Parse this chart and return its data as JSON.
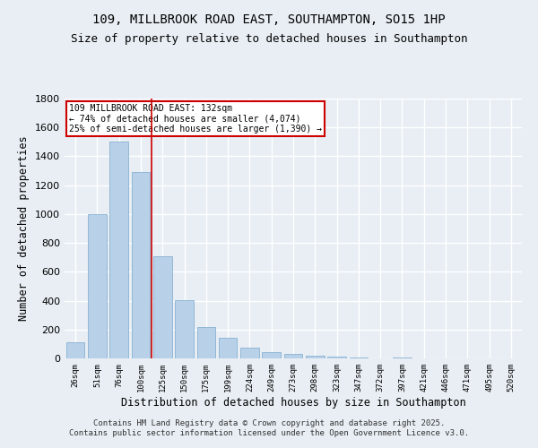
{
  "title": "109, MILLBROOK ROAD EAST, SOUTHAMPTON, SO15 1HP",
  "subtitle": "Size of property relative to detached houses in Southampton",
  "xlabel": "Distribution of detached houses by size in Southampton",
  "ylabel": "Number of detached properties",
  "categories": [
    "26sqm",
    "51sqm",
    "76sqm",
    "100sqm",
    "125sqm",
    "150sqm",
    "175sqm",
    "199sqm",
    "224sqm",
    "249sqm",
    "273sqm",
    "298sqm",
    "323sqm",
    "347sqm",
    "372sqm",
    "397sqm",
    "421sqm",
    "446sqm",
    "471sqm",
    "495sqm",
    "520sqm"
  ],
  "values": [
    110,
    1000,
    1500,
    1290,
    710,
    405,
    215,
    140,
    75,
    45,
    30,
    20,
    10,
    5,
    0,
    5,
    0,
    0,
    0,
    0,
    0
  ],
  "bar_color": "#b8d0e8",
  "bar_edge_color": "#7aA8cc",
  "vline_color": "#cc0000",
  "vline_pos": 3.5,
  "annotation_text": "109 MILLBROOK ROAD EAST: 132sqm\n← 74% of detached houses are smaller (4,074)\n25% of semi-detached houses are larger (1,390) →",
  "annotation_box_color": "#ffffff",
  "annotation_box_edge": "#cc0000",
  "footer": "Contains HM Land Registry data © Crown copyright and database right 2025.\nContains public sector information licensed under the Open Government Licence v3.0.",
  "ylim": [
    0,
    1800
  ],
  "bg_color": "#e8eef4",
  "plot_bg_color": "#e8eef4",
  "grid_color": "#ffffff",
  "title_fontsize": 10,
  "subtitle_fontsize": 9,
  "footer_fontsize": 6.5,
  "yticks": [
    0,
    200,
    400,
    600,
    800,
    1000,
    1200,
    1400,
    1600,
    1800
  ]
}
